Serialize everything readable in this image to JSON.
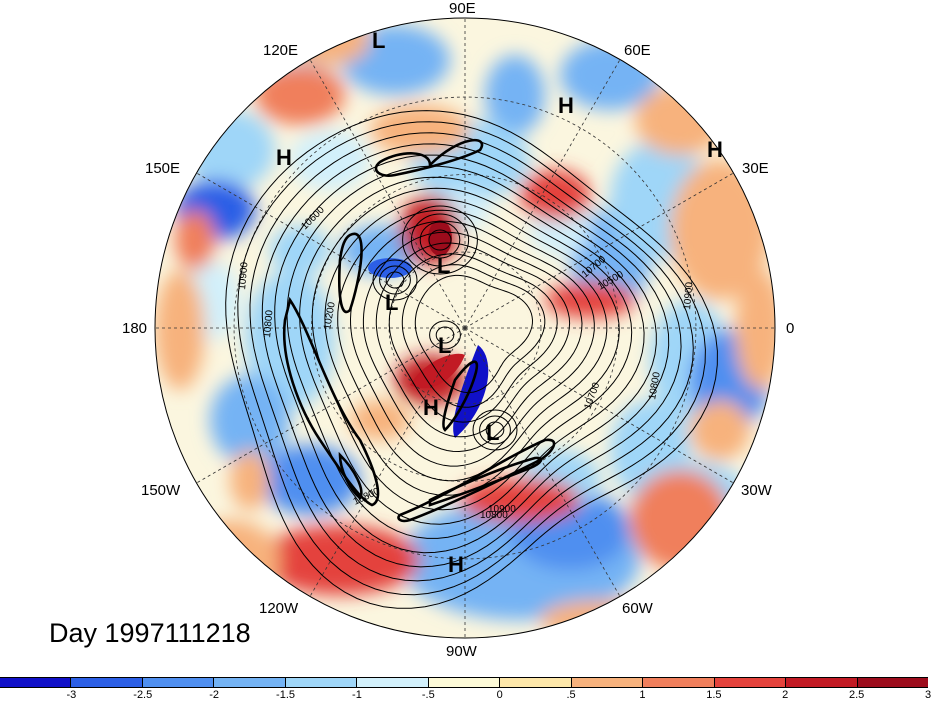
{
  "title": "Day 1997111218",
  "longitude_labels": {
    "lon_90e": "90E",
    "lon_60e": "60E",
    "lon_30e": "30E",
    "lon_0": "0",
    "lon_30w": "30W",
    "lon_60w": "60W",
    "lon_90w": "90W",
    "lon_120w": "120W",
    "lon_150w": "150W",
    "lon_180": "180",
    "lon_150e": "150E",
    "lon_120e": "120E"
  },
  "pressure_systems": [
    {
      "label": "L",
      "name": "low-north-russia"
    },
    {
      "label": "H",
      "name": "high-siberia"
    },
    {
      "label": "H",
      "name": "high-europe"
    },
    {
      "label": "H",
      "name": "high-east-asia"
    },
    {
      "label": "L",
      "name": "low-arctic-1"
    },
    {
      "label": "L",
      "name": "low-arctic-2"
    },
    {
      "label": "L",
      "name": "low-canada"
    },
    {
      "label": "H",
      "name": "high-canada"
    },
    {
      "label": "L",
      "name": "low-greenland"
    },
    {
      "label": "H",
      "name": "high-tropics"
    }
  ],
  "contour_labels": [
    "10600",
    "10700",
    "10900",
    "10800",
    "10200",
    "10800",
    "10700",
    "10800",
    "10500",
    "10900",
    "10800",
    "10900"
  ],
  "colorbar": {
    "colors": [
      "#1010c8",
      "#2c5fe6",
      "#4f8ff0",
      "#74b3f4",
      "#9fd6f8",
      "#d2f0fb",
      "#fdfad8",
      "#fde7aa",
      "#f7b27d",
      "#f07f5c",
      "#e4433c",
      "#c21a24",
      "#9c0c1c"
    ],
    "ticks": [
      "-3",
      "-2.5",
      "-2",
      "-1.5",
      "-1",
      "-.5",
      "0",
      ".5",
      "1",
      "1.5",
      "2",
      "2.5",
      "3"
    ]
  }
}
